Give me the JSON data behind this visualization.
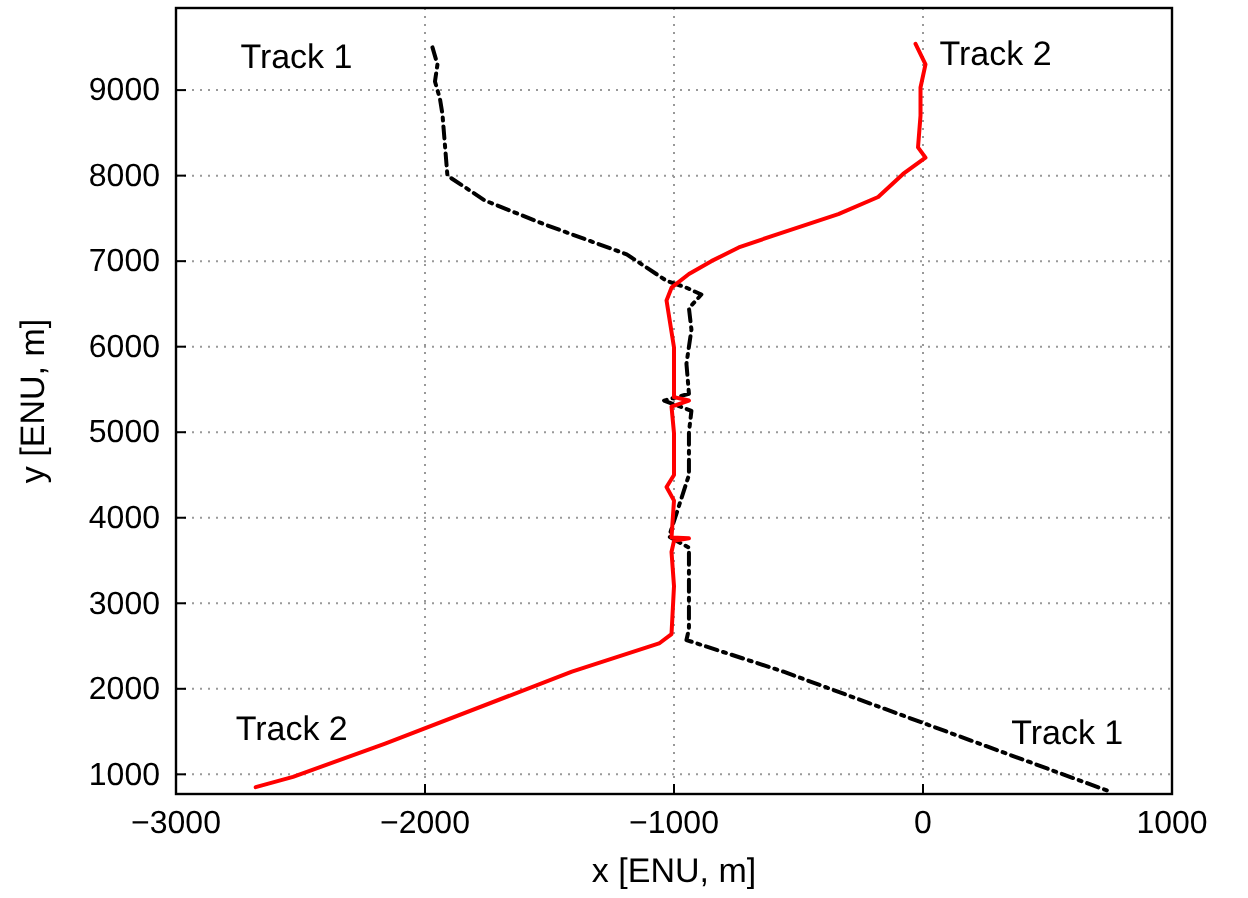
{
  "chart_data": {
    "type": "line",
    "xlabel": "x [ENU, m]",
    "ylabel": "y [ENU, m]",
    "xlim": [
      -3000,
      1000
    ],
    "ylim": [
      770,
      9960
    ],
    "xticks": [
      -3000,
      -2000,
      -1000,
      0,
      1000
    ],
    "yticks": [
      1000,
      2000,
      3000,
      4000,
      5000,
      6000,
      7000,
      8000,
      9000
    ],
    "grid": true,
    "marker": "none",
    "series": [
      {
        "name": "Track 1",
        "color": "#000000",
        "line_style": "dashed",
        "x": [
          -1970,
          -1950,
          -1960,
          -1940,
          -1930,
          -1910,
          -1760,
          -1520,
          -1190,
          -1030,
          -950,
          -890,
          -940,
          -930,
          -950,
          -940,
          -1040,
          -930,
          -940,
          -940,
          -1020,
          -940,
          -940,
          -940,
          -950,
          -560,
          740
        ],
        "values": [
          9500,
          9300,
          9100,
          8900,
          8720,
          8000,
          7710,
          7430,
          7080,
          6770,
          6690,
          6610,
          6450,
          6200,
          5800,
          5450,
          5370,
          5250,
          5000,
          4500,
          3780,
          3650,
          3400,
          2700,
          2570,
          2200,
          810
        ]
      },
      {
        "name": "Track 2",
        "color": "#ff0000",
        "line_style": "solid",
        "x": [
          -2680,
          -2530,
          -2160,
          -1410,
          -1060,
          -1010,
          -1000,
          -1010,
          -1000,
          -940,
          -1010,
          -1000,
          -1030,
          -1000,
          -1000,
          -1010,
          -940,
          -1000,
          -1000,
          -1030,
          -1010,
          -940,
          -850,
          -740,
          -580,
          -340,
          -180,
          -80,
          10,
          -20,
          -10,
          -10,
          10,
          -30
        ],
        "values": [
          850,
          970,
          1360,
          2200,
          2530,
          2640,
          3200,
          3600,
          3730,
          3760,
          3770,
          4200,
          4360,
          4500,
          4990,
          5300,
          5370,
          5410,
          5990,
          6540,
          6690,
          6850,
          7000,
          7160,
          7320,
          7550,
          7750,
          8020,
          8210,
          8330,
          8700,
          9030,
          9300,
          9540
        ]
      }
    ]
  }
}
